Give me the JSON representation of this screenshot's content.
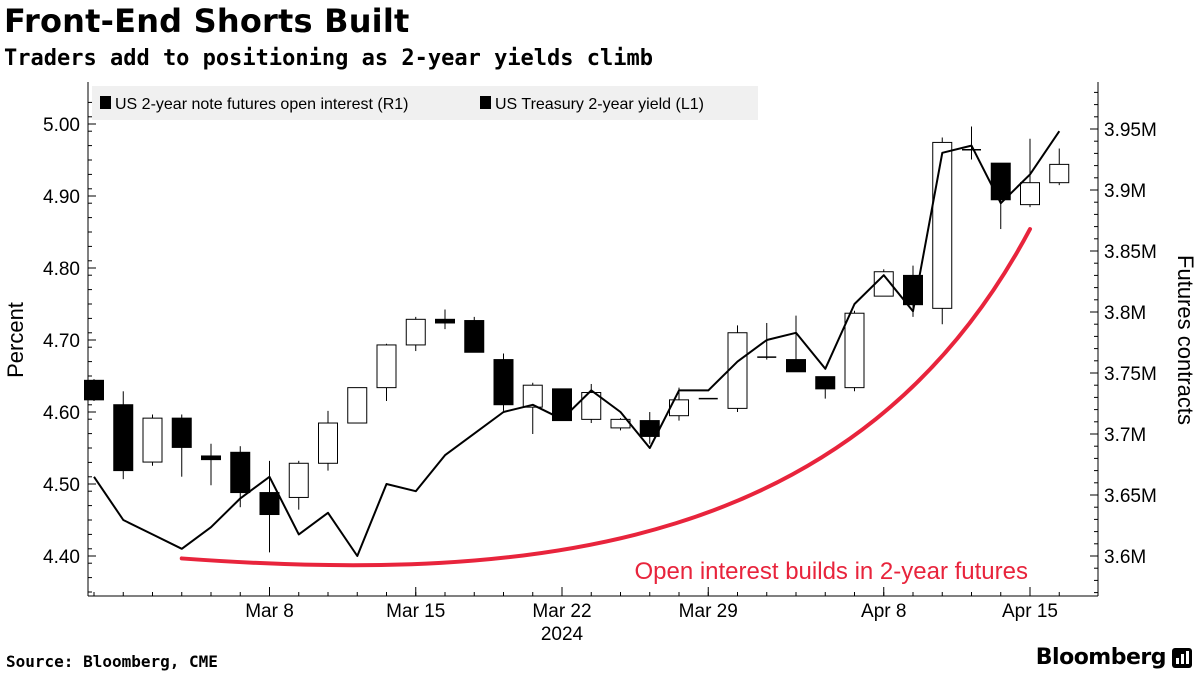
{
  "header": {
    "title": "Front-End Shorts Built",
    "subtitle": "Traders add to positioning as 2-year yields climb"
  },
  "footer": {
    "source": "Source: Bloomberg, CME",
    "brand": "Bloomberg",
    "brand_icon": "bloomberg-terminal-icon"
  },
  "colors": {
    "line": "#000000",
    "candle_up": "#ffffff",
    "candle_down": "#000000",
    "annotation": "#e8243c",
    "legend_bg": "#f0f0f0",
    "grid": "#d9d9d9"
  },
  "chart_data": {
    "type": "line+candlestick",
    "legend": [
      {
        "label": "US 2-year note futures open interest (R1)",
        "type": "candlestick"
      },
      {
        "label": "US Treasury 2-year yield (L1)",
        "type": "line"
      }
    ],
    "legend_position": "top-left",
    "x_ticks": [
      {
        "label": "Mar 8",
        "date": "2024-03-08"
      },
      {
        "label": "Mar 15",
        "date": "2024-03-15"
      },
      {
        "label": "Mar 22",
        "date": "2024-03-22"
      },
      {
        "label": "Mar 29",
        "date": "2024-03-29"
      },
      {
        "label": "Apr 8",
        "date": "2024-04-08"
      },
      {
        "label": "Apr 15",
        "date": "2024-04-15"
      }
    ],
    "x_year_label": "2024",
    "y_left": {
      "label": "Percent",
      "range": [
        4.35,
        5.04
      ],
      "ticks": [
        4.4,
        4.5,
        4.6,
        4.7,
        4.8,
        4.9,
        5.0
      ],
      "tick_labels": [
        "4.40",
        "4.50",
        "4.60",
        "4.70",
        "4.80",
        "4.90",
        "5.00"
      ]
    },
    "y_right": {
      "label": "Futures contracts",
      "range": [
        3.565,
        3.989
      ],
      "ticks": [
        3.6,
        3.65,
        3.7,
        3.75,
        3.8,
        3.85,
        3.9,
        3.95
      ],
      "tick_labels": [
        "3.6M",
        "3.65M",
        "3.7M",
        "3.75M",
        "3.8M",
        "3.85M",
        "3.9M",
        "3.95M"
      ]
    },
    "yield_series": {
      "name": "US Treasury 2-year yield",
      "points": [
        {
          "date": "2024-02-29",
          "value": 4.51
        },
        {
          "date": "2024-03-01",
          "value": 4.45
        },
        {
          "date": "2024-03-04",
          "value": 4.43
        },
        {
          "date": "2024-03-05",
          "value": 4.41
        },
        {
          "date": "2024-03-06",
          "value": 4.44
        },
        {
          "date": "2024-03-07",
          "value": 4.48
        },
        {
          "date": "2024-03-08",
          "value": 4.51
        },
        {
          "date": "2024-03-11",
          "value": 4.43
        },
        {
          "date": "2024-03-12",
          "value": 4.46
        },
        {
          "date": "2024-03-13",
          "value": 4.4
        },
        {
          "date": "2024-03-14",
          "value": 4.5
        },
        {
          "date": "2024-03-15",
          "value": 4.49
        },
        {
          "date": "2024-03-18",
          "value": 4.54
        },
        {
          "date": "2024-03-19",
          "value": 4.57
        },
        {
          "date": "2024-03-20",
          "value": 4.6
        },
        {
          "date": "2024-03-21",
          "value": 4.61
        },
        {
          "date": "2024-03-22",
          "value": 4.59
        },
        {
          "date": "2024-03-25",
          "value": 4.63
        },
        {
          "date": "2024-03-26",
          "value": 4.6
        },
        {
          "date": "2024-03-27",
          "value": 4.55
        },
        {
          "date": "2024-03-28",
          "value": 4.63
        },
        {
          "date": "2024-03-29",
          "value": 4.63
        },
        {
          "date": "2024-04-01",
          "value": 4.67
        },
        {
          "date": "2024-04-02",
          "value": 4.7
        },
        {
          "date": "2024-04-03",
          "value": 4.71
        },
        {
          "date": "2024-04-04",
          "value": 4.66
        },
        {
          "date": "2024-04-05",
          "value": 4.75
        },
        {
          "date": "2024-04-08",
          "value": 4.79
        },
        {
          "date": "2024-04-09",
          "value": 4.74
        },
        {
          "date": "2024-04-10",
          "value": 4.96
        },
        {
          "date": "2024-04-11",
          "value": 4.97
        },
        {
          "date": "2024-04-12",
          "value": 4.89
        },
        {
          "date": "2024-04-15",
          "value": 4.93
        },
        {
          "date": "2024-04-16",
          "value": 4.99
        }
      ]
    },
    "open_interest_series": {
      "name": "US 2-year note futures open interest",
      "candles": [
        {
          "date": "2024-02-29",
          "open": 3.744,
          "close": 3.728,
          "high": 3.745,
          "low": 3.727
        },
        {
          "date": "2024-03-01",
          "open": 3.724,
          "close": 3.67,
          "high": 3.735,
          "low": 3.663
        },
        {
          "date": "2024-03-04",
          "open": 3.677,
          "close": 3.713,
          "high": 3.716,
          "low": 3.674
        },
        {
          "date": "2024-03-05",
          "open": 3.713,
          "close": 3.689,
          "high": 3.716,
          "low": 3.665
        },
        {
          "date": "2024-03-06",
          "open": 3.682,
          "close": 3.679,
          "high": 3.692,
          "low": 3.658
        },
        {
          "date": "2024-03-07",
          "open": 3.685,
          "close": 3.652,
          "high": 3.69,
          "low": 3.64
        },
        {
          "date": "2024-03-08",
          "open": 3.652,
          "close": 3.634,
          "high": 3.678,
          "low": 3.603
        },
        {
          "date": "2024-03-11",
          "open": 3.648,
          "close": 3.676,
          "high": 3.678,
          "low": 3.638
        },
        {
          "date": "2024-03-12",
          "open": 3.676,
          "close": 3.709,
          "high": 3.719,
          "low": 3.67
        },
        {
          "date": "2024-03-13",
          "open": 3.709,
          "close": 3.738,
          "high": 3.738,
          "low": 3.709
        },
        {
          "date": "2024-03-14",
          "open": 3.738,
          "close": 3.773,
          "high": 3.774,
          "low": 3.727
        },
        {
          "date": "2024-03-15",
          "open": 3.773,
          "close": 3.794,
          "high": 3.796,
          "low": 3.768
        },
        {
          "date": "2024-03-18",
          "open": 3.794,
          "close": 3.791,
          "high": 3.802,
          "low": 3.786
        },
        {
          "date": "2024-03-19",
          "open": 3.793,
          "close": 3.767,
          "high": 3.796,
          "low": 3.767
        },
        {
          "date": "2024-03-20",
          "open": 3.761,
          "close": 3.724,
          "high": 3.766,
          "low": 3.719
        },
        {
          "date": "2024-03-21",
          "open": 3.722,
          "close": 3.74,
          "high": 3.742,
          "low": 3.7
        },
        {
          "date": "2024-03-22",
          "open": 3.737,
          "close": 3.711,
          "high": 3.737,
          "low": 3.711
        },
        {
          "date": "2024-03-25",
          "open": 3.712,
          "close": 3.734,
          "high": 3.741,
          "low": 3.709
        },
        {
          "date": "2024-03-26",
          "open": 3.705,
          "close": 3.712,
          "high": 3.713,
          "low": 3.703
        },
        {
          "date": "2024-03-27",
          "open": 3.711,
          "close": 3.698,
          "high": 3.718,
          "low": 3.692
        },
        {
          "date": "2024-03-28",
          "open": 3.715,
          "close": 3.728,
          "high": 3.738,
          "low": 3.711
        },
        {
          "date": "2024-03-29",
          "open": 3.729,
          "close": 3.729,
          "high": 3.729,
          "low": 3.729
        },
        {
          "date": "2024-04-01",
          "open": 3.721,
          "close": 3.783,
          "high": 3.789,
          "low": 3.718
        },
        {
          "date": "2024-04-02",
          "open": 3.763,
          "close": 3.763,
          "high": 3.791,
          "low": 3.761
        },
        {
          "date": "2024-04-03",
          "open": 3.761,
          "close": 3.751,
          "high": 3.797,
          "low": 3.751
        },
        {
          "date": "2024-04-04",
          "open": 3.747,
          "close": 3.737,
          "high": 3.747,
          "low": 3.729
        },
        {
          "date": "2024-04-05",
          "open": 3.738,
          "close": 3.799,
          "high": 3.801,
          "low": 3.735
        },
        {
          "date": "2024-04-08",
          "open": 3.813,
          "close": 3.833,
          "high": 3.835,
          "low": 3.813
        },
        {
          "date": "2024-04-09",
          "open": 3.83,
          "close": 3.806,
          "high": 3.838,
          "low": 3.796
        },
        {
          "date": "2024-04-10",
          "open": 3.803,
          "close": 3.939,
          "high": 3.943,
          "low": 3.79
        },
        {
          "date": "2024-04-11",
          "open": 3.933,
          "close": 3.933,
          "high": 3.952,
          "low": 3.925
        },
        {
          "date": "2024-04-12",
          "open": 3.922,
          "close": 3.892,
          "high": 3.922,
          "low": 3.868
        },
        {
          "date": "2024-04-15",
          "open": 3.888,
          "close": 3.906,
          "high": 3.942,
          "low": 3.886
        },
        {
          "date": "2024-04-16",
          "open": 3.906,
          "close": 3.921,
          "high": 3.934,
          "low": 3.904
        }
      ]
    },
    "annotation": {
      "text": "Open interest builds in 2-year futures",
      "arc_from": {
        "date": "2024-03-05",
        "value_r1": 3.598
      },
      "arc_to": {
        "date": "2024-04-15",
        "value_r1": 3.868
      }
    }
  }
}
